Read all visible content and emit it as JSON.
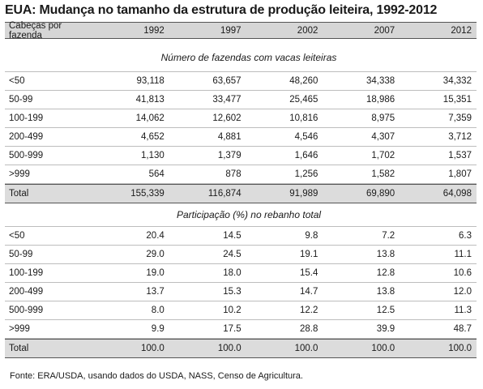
{
  "title": "EUA: Mudança no tamanho da estrutura de produção leiteira, 1992-2012",
  "header": {
    "label": "Cabeças por fazenda",
    "years": [
      "1992",
      "1997",
      "2002",
      "2007",
      "2012"
    ]
  },
  "section1": {
    "subtitle": "Número de fazendas com vacas leiteiras",
    "rows": [
      {
        "label": "<50",
        "values": [
          "93,118",
          "63,657",
          "48,260",
          "34,338",
          "34,332"
        ]
      },
      {
        "label": "50-99",
        "values": [
          "41,813",
          "33,477",
          "25,465",
          "18,986",
          "15,351"
        ]
      },
      {
        "label": "100-199",
        "values": [
          "14,062",
          "12,602",
          "10,816",
          "8,975",
          "7,359"
        ]
      },
      {
        "label": "200-499",
        "values": [
          "4,652",
          "4,881",
          "4,546",
          "4,307",
          "3,712"
        ]
      },
      {
        "label": "500-999",
        "values": [
          "1,130",
          "1,379",
          "1,646",
          "1,702",
          "1,537"
        ]
      },
      {
        "label": ">999",
        "values": [
          "564",
          "878",
          "1,256",
          "1,582",
          "1,807"
        ]
      }
    ],
    "total": {
      "label": "Total",
      "values": [
        "155,339",
        "116,874",
        "91,989",
        "69,890",
        "64,098"
      ]
    }
  },
  "section2": {
    "subtitle": "Participação (%) no rebanho total",
    "rows": [
      {
        "label": "<50",
        "values": [
          "20.4",
          "14.5",
          "9.8",
          "7.2",
          "6.3"
        ]
      },
      {
        "label": "50-99",
        "values": [
          "29.0",
          "24.5",
          "19.1",
          "13.8",
          "11.1"
        ]
      },
      {
        "label": "100-199",
        "values": [
          "19.0",
          "18.0",
          "15.4",
          "12.8",
          "10.6"
        ]
      },
      {
        "label": "200-499",
        "values": [
          "13.7",
          "15.3",
          "14.7",
          "13.8",
          "12.0"
        ]
      },
      {
        "label": "500-999",
        "values": [
          "8.0",
          "10.2",
          "12.2",
          "12.5",
          "11.3"
        ]
      },
      {
        "label": ">999",
        "values": [
          "9.9",
          "17.5",
          "28.8",
          "39.9",
          "48.7"
        ]
      }
    ],
    "total": {
      "label": "Total",
      "values": [
        "100.0",
        "100.0",
        "100.0",
        "100.0",
        "100.0"
      ]
    }
  },
  "footer": "Fonte: ERA/USDA, usando dados do USDA, NASS, Censo de Agricultura."
}
